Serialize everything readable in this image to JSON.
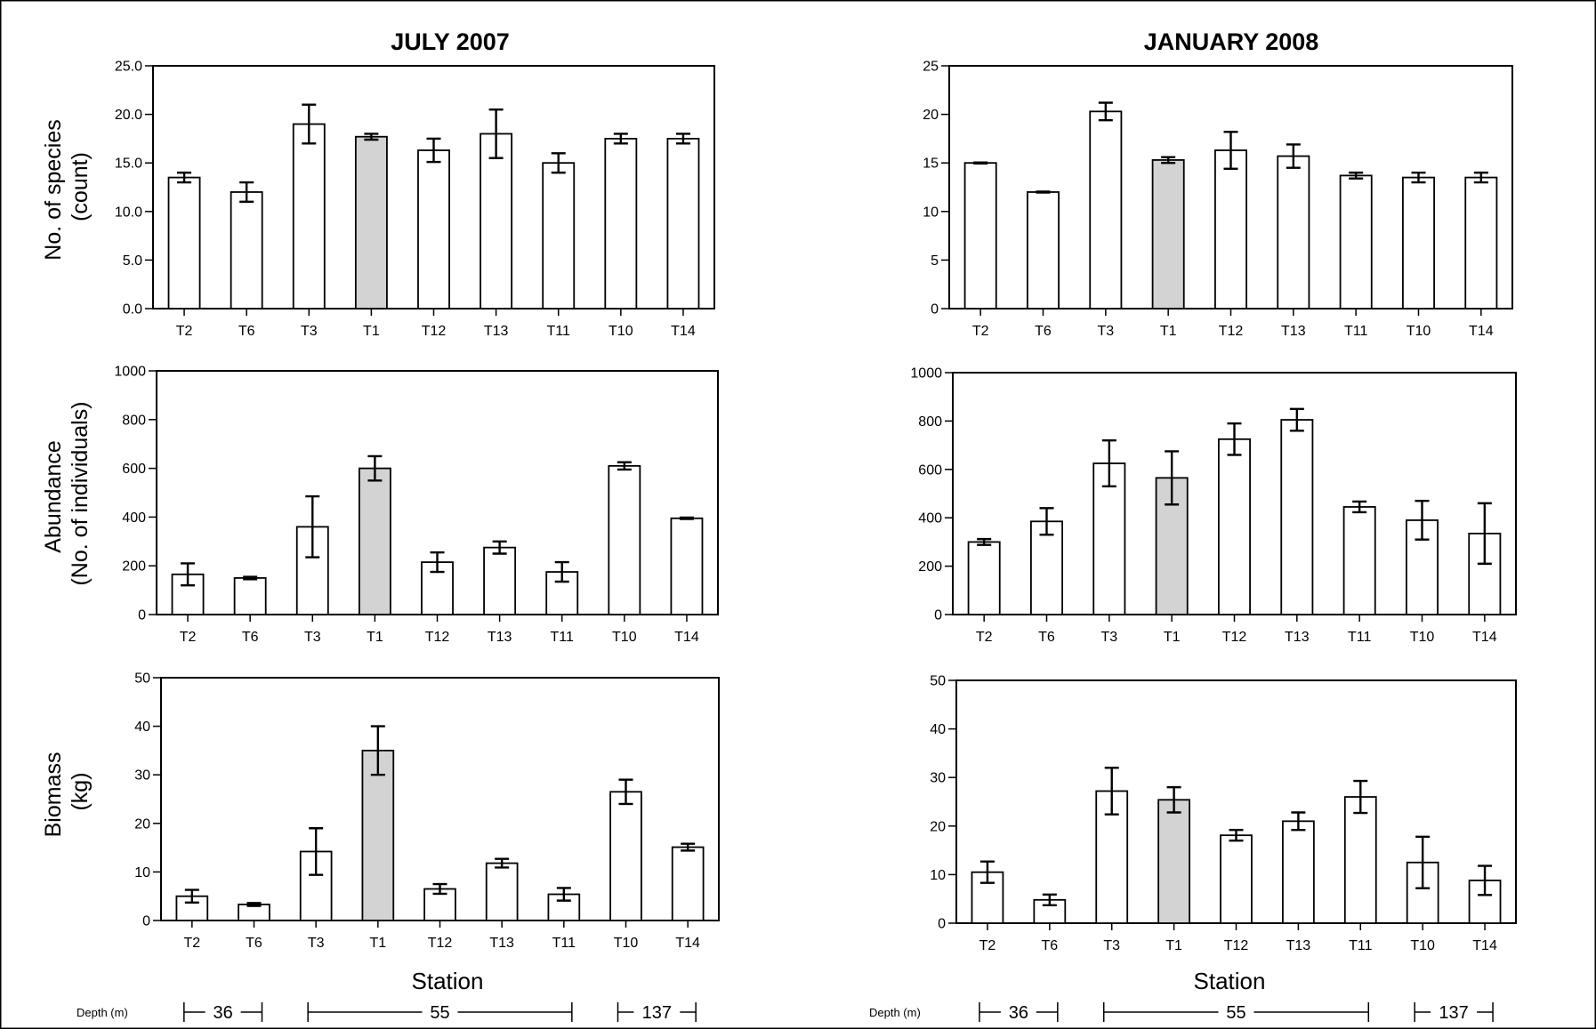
{
  "colors": {
    "highlight": "#d3d3d3",
    "bar": "#ffffff",
    "ink": "#000000"
  },
  "columns": [
    {
      "title": "JULY 2007"
    },
    {
      "title": "JANUARY 2008"
    }
  ],
  "row_labels": [
    [
      "No. of species",
      "(count)"
    ],
    [
      "Abundance",
      "(No. of individuals)"
    ],
    [
      "Biomass",
      "(kg)"
    ]
  ],
  "xlabel": "Station",
  "depth": {
    "label": "Depth (m)",
    "groups": [
      {
        "value": "36",
        "from": "T2",
        "to": "T6"
      },
      {
        "value": "55",
        "from": "T3",
        "to": "T11"
      },
      {
        "value": "137",
        "from": "T10",
        "to": "T14"
      }
    ]
  },
  "chart_data": [
    {
      "id": "jul-species",
      "type": "bar",
      "title": "JULY 2007",
      "ylabel": "No. of species (count)",
      "categories": [
        "T2",
        "T6",
        "T3",
        "T1",
        "T12",
        "T13",
        "T11",
        "T10",
        "T14"
      ],
      "values": [
        13.5,
        12.0,
        19.0,
        17.7,
        16.3,
        18.0,
        15.0,
        17.5,
        17.5
      ],
      "errors": [
        0.5,
        1.0,
        2.0,
        0.3,
        1.2,
        2.5,
        1.0,
        0.5,
        0.5
      ],
      "ylim": [
        0,
        25
      ],
      "yticks": [
        "0.0",
        "5.0",
        "10.0",
        "15.0",
        "20.0",
        "25.0"
      ],
      "highlight": "T1"
    },
    {
      "id": "jan-species",
      "type": "bar",
      "title": "JANUARY 2008",
      "ylabel": "No. of species (count)",
      "categories": [
        "T2",
        "T6",
        "T3",
        "T1",
        "T12",
        "T13",
        "T11",
        "T10",
        "T14"
      ],
      "values": [
        15.0,
        12.0,
        20.3,
        15.3,
        16.3,
        15.7,
        13.7,
        13.5,
        13.5
      ],
      "errors": [
        0.05,
        0.05,
        0.9,
        0.3,
        1.9,
        1.2,
        0.3,
        0.5,
        0.5
      ],
      "ylim": [
        0,
        25
      ],
      "yticks": [
        "0",
        "5",
        "10",
        "15",
        "20",
        "25"
      ],
      "highlight": "T1"
    },
    {
      "id": "jul-abundance",
      "type": "bar",
      "title": "JULY 2007",
      "ylabel": "Abundance (No. of individuals)",
      "categories": [
        "T2",
        "T6",
        "T3",
        "T1",
        "T12",
        "T13",
        "T11",
        "T10",
        "T14"
      ],
      "values": [
        165,
        150,
        360,
        600,
        215,
        275,
        175,
        610,
        395
      ],
      "errors": [
        45,
        5,
        125,
        50,
        40,
        25,
        40,
        15,
        3
      ],
      "ylim": [
        0,
        1000
      ],
      "yticks": [
        "0",
        "200",
        "400",
        "600",
        "800",
        "1000"
      ],
      "highlight": "T1"
    },
    {
      "id": "jan-abundance",
      "type": "bar",
      "title": "JANUARY 2008",
      "ylabel": "Abundance (No. of individuals)",
      "categories": [
        "T2",
        "T6",
        "T3",
        "T1",
        "T12",
        "T13",
        "T11",
        "T10",
        "T14"
      ],
      "values": [
        300,
        385,
        625,
        565,
        725,
        805,
        445,
        390,
        335
      ],
      "errors": [
        12,
        55,
        95,
        110,
        65,
        45,
        22,
        80,
        125
      ],
      "ylim": [
        0,
        1000
      ],
      "yticks": [
        "0",
        "200",
        "400",
        "600",
        "800",
        "1000"
      ],
      "highlight": "T1"
    },
    {
      "id": "jul-biomass",
      "type": "bar",
      "title": "JULY 2007",
      "ylabel": "Biomass (kg)",
      "categories": [
        "T2",
        "T6",
        "T3",
        "T1",
        "T12",
        "T13",
        "T11",
        "T10",
        "T14"
      ],
      "values": [
        5.0,
        3.3,
        14.2,
        35.0,
        6.5,
        11.8,
        5.4,
        26.5,
        15.1
      ],
      "errors": [
        1.3,
        0.3,
        4.8,
        5.0,
        1.0,
        0.9,
        1.3,
        2.5,
        0.7
      ],
      "ylim": [
        0,
        50
      ],
      "yticks": [
        "0",
        "10",
        "20",
        "30",
        "40",
        "50"
      ],
      "highlight": "T1"
    },
    {
      "id": "jan-biomass",
      "type": "bar",
      "title": "JANUARY 2008",
      "ylabel": "Biomass (kg)",
      "categories": [
        "T2",
        "T6",
        "T3",
        "T1",
        "T12",
        "T13",
        "T11",
        "T10",
        "T14"
      ],
      "values": [
        10.5,
        4.8,
        27.2,
        25.4,
        18.1,
        21.0,
        26.0,
        12.5,
        8.8
      ],
      "errors": [
        2.2,
        1.1,
        4.8,
        2.6,
        1.1,
        1.8,
        3.3,
        5.3,
        3.0
      ],
      "ylim": [
        0,
        50
      ],
      "yticks": [
        "0",
        "10",
        "20",
        "30",
        "40",
        "50"
      ],
      "highlight": "T1"
    }
  ]
}
